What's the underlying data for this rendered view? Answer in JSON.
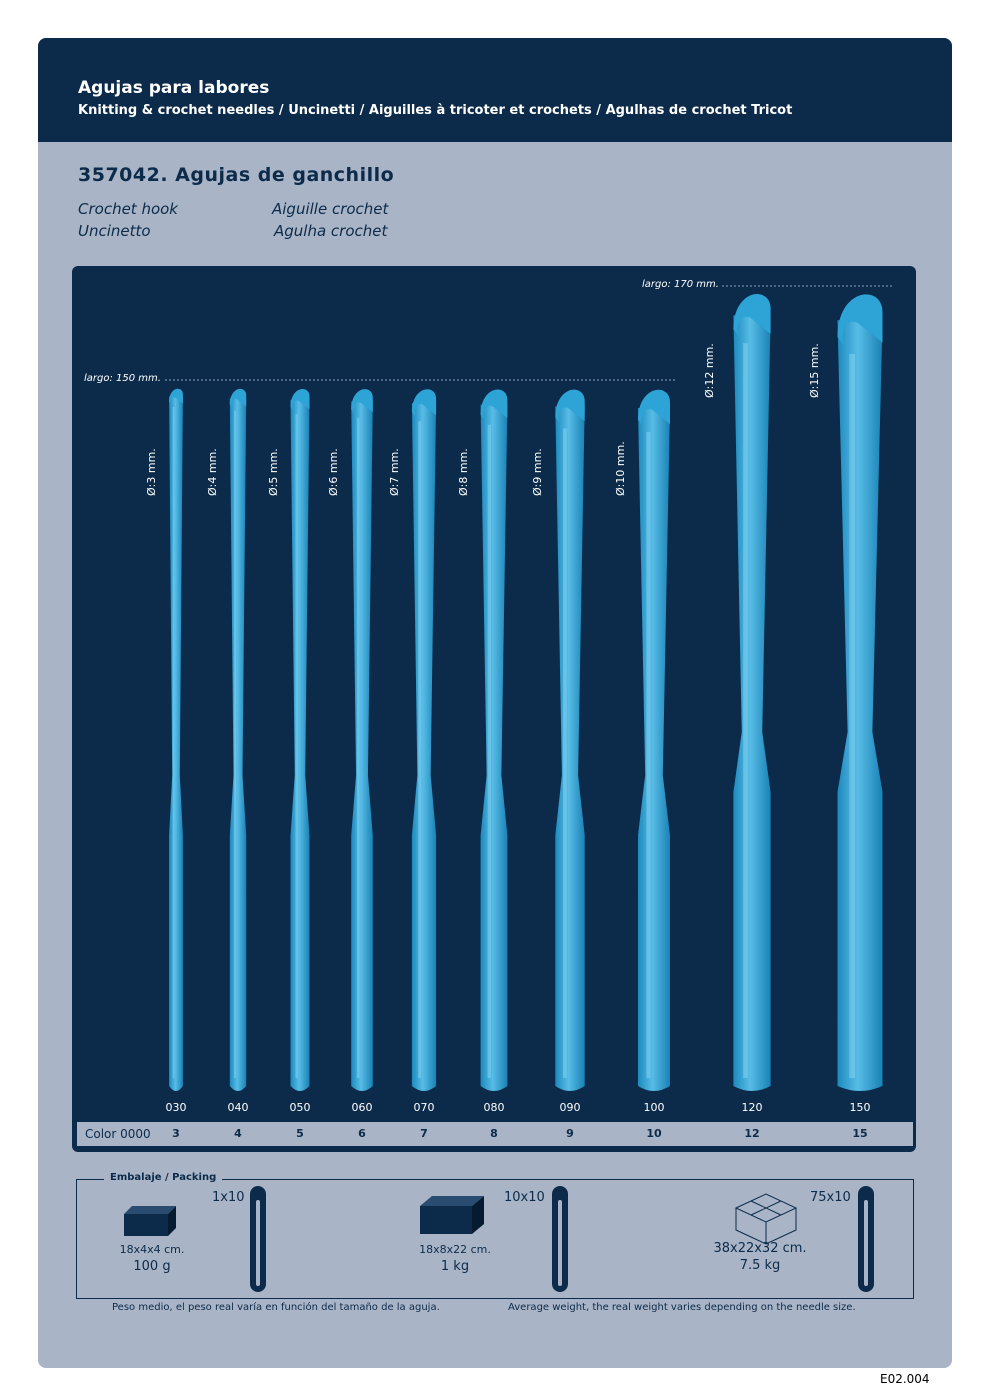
{
  "header": {
    "title": "Agujas para labores",
    "subtitle": "Knitting & crochet needles / Uncinetti / Aiguilles à tricoter et crochets / Agulhas de crochet Tricot"
  },
  "product": {
    "title": "357042. Agujas de ganchillo",
    "names": [
      "Crochet hook",
      "Aiguille crochet",
      "Uncinetto",
      "Agulha crochet"
    ]
  },
  "lengths": {
    "short": "largo: 150 mm.",
    "long": "largo: 170 mm."
  },
  "hooks": [
    {
      "diameter": "Ø:3 mm.",
      "code": "030",
      "color": "3",
      "d": 3,
      "len": 150
    },
    {
      "diameter": "Ø:4 mm.",
      "code": "040",
      "color": "4",
      "d": 4,
      "len": 150
    },
    {
      "diameter": "Ø:5 mm.",
      "code": "050",
      "color": "5",
      "d": 5,
      "len": 150
    },
    {
      "diameter": "Ø:6 mm.",
      "code": "060",
      "color": "6",
      "d": 6,
      "len": 150
    },
    {
      "diameter": "Ø:7 mm.",
      "code": "070",
      "color": "7",
      "d": 7,
      "len": 150
    },
    {
      "diameter": "Ø:8 mm.",
      "code": "080",
      "color": "8",
      "d": 8,
      "len": 150
    },
    {
      "diameter": "Ø:9 mm.",
      "code": "090",
      "color": "9",
      "d": 9,
      "len": 150
    },
    {
      "diameter": "Ø:10 mm.",
      "code": "100",
      "color": "10",
      "d": 10,
      "len": 150
    },
    {
      "diameter": "Ø:12 mm.",
      "code": "120",
      "color": "12",
      "d": 12,
      "len": 170
    },
    {
      "diameter": "Ø:15 mm.",
      "code": "150",
      "color": "15",
      "d": 15,
      "len": 170
    }
  ],
  "color_label": "Color 0000",
  "packing": {
    "label": "Embalaje / Packing",
    "items": [
      {
        "qty": "1x10",
        "dims": "18x4x4 cm.",
        "weight": "100 g"
      },
      {
        "qty": "10x10",
        "dims": "18x8x22 cm.",
        "weight": "1 kg"
      },
      {
        "qty": "75x10",
        "dims": "38x22x32 cm.",
        "weight": "7.5 kg"
      }
    ]
  },
  "notes": {
    "es": "Peso medio, el peso real varía en función del tamaño de la aguja.",
    "en": "Average weight, the real weight varies depending on the needle size."
  },
  "page_number": "E02.004",
  "colors": {
    "navy": "#0c2b4a",
    "background": "#a9b4c6",
    "hook": "#2ea3d6",
    "hook_light": "#7fd0f0"
  }
}
